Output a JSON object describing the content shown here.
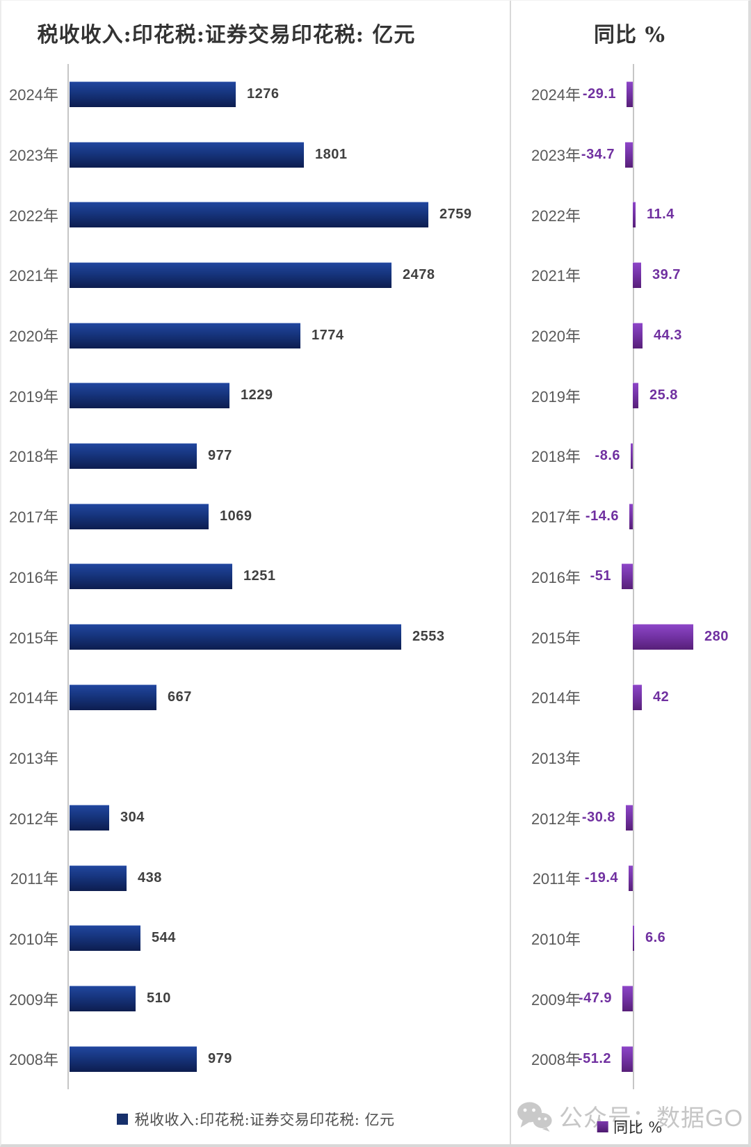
{
  "watermark": {
    "icon": "wechat-icon",
    "text": "公众号：数据GO"
  },
  "chart_data": [
    {
      "type": "bar",
      "orientation": "horizontal",
      "title": "税收收入:印花税:证券交易印花税: 亿元",
      "legend": "税收收入:印花税:证券交易印花税: 亿元",
      "legend_position": "bottom",
      "grid": false,
      "categories": [
        "2024年",
        "2023年",
        "2022年",
        "2021年",
        "2020年",
        "2019年",
        "2018年",
        "2017年",
        "2016年",
        "2015年",
        "2014年",
        "2013年",
        "2012年",
        "2011年",
        "2010年",
        "2009年",
        "2008年"
      ],
      "values": [
        1276,
        1801,
        2759,
        2478,
        1774,
        1229,
        977,
        1069,
        1251,
        2553,
        667,
        null,
        304,
        438,
        544,
        510,
        979
      ],
      "xlim": [
        0,
        2900
      ],
      "bar_color_top": "#21469e",
      "bar_color_bottom": "#0d1d4f",
      "value_label_color": "#404040",
      "category_label_color": "#595959"
    },
    {
      "type": "bar",
      "orientation": "horizontal",
      "title": "同比 %",
      "legend": "同比 %",
      "legend_position": "bottom",
      "grid": false,
      "categories": [
        "2024年",
        "2023年",
        "2022年",
        "2021年",
        "2020年",
        "2019年",
        "2018年",
        "2017年",
        "2016年",
        "2015年",
        "2014年",
        "2013年",
        "2012年",
        "2011年",
        "2010年",
        "2009年",
        "2008年"
      ],
      "values": [
        -29.1,
        -34.7,
        11.4,
        39.7,
        44.3,
        25.8,
        -8.6,
        -14.6,
        -51,
        280,
        42,
        null,
        -30.8,
        -19.4,
        6.6,
        -47.9,
        -51.2
      ],
      "xlim": [
        -60,
        300
      ],
      "bar_color_top": "#8c45c7",
      "bar_color_bottom": "#571f78",
      "value_label_color": "#7030a0",
      "category_label_color": "#595959"
    }
  ]
}
